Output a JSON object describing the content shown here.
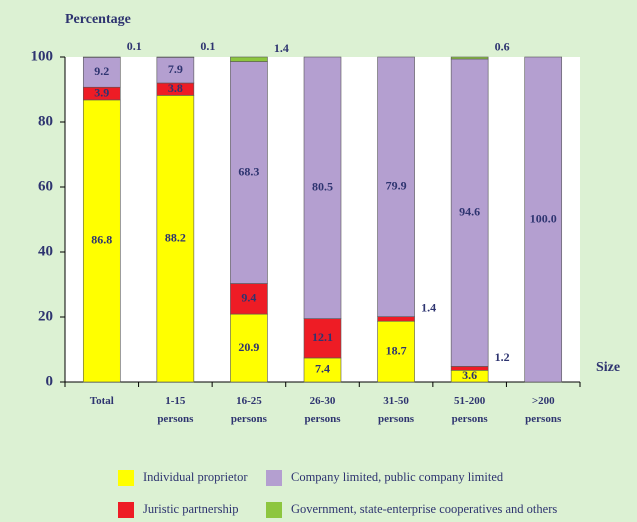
{
  "chart_data": {
    "type": "stacked_bar",
    "y_label": "Percentage",
    "x_label": "Size",
    "categories": [
      "Total",
      "1-15 persons",
      "16-25 persons",
      "26-30 persons",
      "31-50 persons",
      "51-200 persons",
      ">200 persons"
    ],
    "series": [
      {
        "name": "Individual proprietor",
        "color": "#ffff00",
        "values": [
          86.8,
          88.2,
          20.9,
          7.4,
          18.7,
          3.6,
          null
        ]
      },
      {
        "name": "Juristic partnership",
        "color": "#ee1c25",
        "values": [
          3.9,
          3.8,
          9.4,
          12.1,
          1.4,
          1.2,
          null
        ]
      },
      {
        "name": "Company limited, public company limited",
        "color": "#b49fd0",
        "values": [
          9.2,
          7.9,
          68.3,
          80.5,
          79.9,
          94.6,
          100
        ],
        "value_labels": [
          "9.2",
          "7.9",
          "68.3",
          "80.5",
          "79.9",
          "94.6",
          "100.0"
        ]
      },
      {
        "name": "Government, state-enterprise cooperatives and others",
        "color": "#8dc63f",
        "values": [
          0.1,
          0.1,
          1.4,
          null,
          null,
          0.6,
          null
        ]
      }
    ],
    "ylim": [
      0,
      100
    ],
    "yticks": [
      0,
      20,
      40,
      60,
      80,
      100
    ]
  }
}
